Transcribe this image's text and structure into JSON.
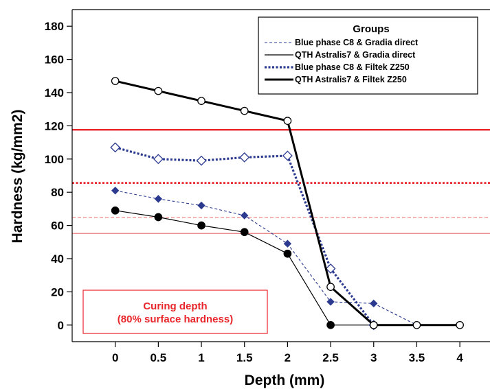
{
  "chart_data": {
    "type": "line",
    "xlabel": "Depth (mm)",
    "ylabel": "Hardness (kg/mm2)",
    "x": [
      0,
      0.5,
      1,
      1.5,
      2,
      2.5,
      3,
      3.5,
      4
    ],
    "x_tick_labels": [
      "0",
      "0.5",
      "1",
      "1.5",
      "2",
      "2.5",
      "3",
      "3.5",
      "4"
    ],
    "y_ticks": [
      0,
      20,
      40,
      60,
      80,
      100,
      120,
      140,
      160,
      180
    ],
    "xlim": [
      -0.5,
      4.35
    ],
    "ylim": [
      -10,
      190
    ],
    "grid": false,
    "legend": {
      "title": "Groups",
      "position": "top-right",
      "entries": [
        "Blue phase C8 & Gradia direct",
        "QTH Astralis7 & Gradia direct",
        "Blue phase C8 & Filtek Z250",
        "QTH Astralis7 & Filtek Z250"
      ]
    },
    "series": [
      {
        "name": "Blue phase C8 & Gradia direct",
        "color": "#2b3a8f",
        "line": "thin-dashed",
        "marker": "filled-diamond",
        "x": [
          0,
          0.5,
          1,
          1.5,
          2,
          2.5,
          3,
          3.5,
          4
        ],
        "values": [
          81,
          76,
          72,
          66,
          49,
          14,
          13,
          0,
          0
        ]
      },
      {
        "name": "QTH Astralis7 & Gradia direct",
        "color": "#000000",
        "line": "thin-solid",
        "marker": "filled-circle",
        "x": [
          0,
          0.5,
          1,
          1.5,
          2,
          2.5,
          3
        ],
        "values": [
          69,
          65,
          60,
          56,
          43,
          0,
          0
        ]
      },
      {
        "name": "Blue phase C8 & Filtek Z250",
        "color": "#2b3a8f",
        "line": "thick-dotted",
        "marker": "open-diamond",
        "x": [
          0,
          0.5,
          1,
          1.5,
          2,
          2.5,
          3
        ],
        "values": [
          107,
          100,
          99,
          101,
          102,
          34,
          0
        ]
      },
      {
        "name": "QTH Astralis7 & Filtek Z250",
        "color": "#000000",
        "line": "thick-solid",
        "marker": "open-circle",
        "x": [
          0,
          0.5,
          1,
          1.5,
          2,
          2.5,
          3,
          3.5,
          4
        ],
        "values": [
          147,
          141,
          135,
          129,
          123,
          23,
          0,
          0,
          0
        ]
      }
    ],
    "reference_lines": [
      {
        "y": 117.6,
        "color": "#e8262b",
        "style": "thick-solid"
      },
      {
        "y": 85.6,
        "color": "#e8262b",
        "style": "thick-dotted"
      },
      {
        "y": 64.8,
        "color": "#ef7b7b",
        "style": "thin-dashed"
      },
      {
        "y": 55.2,
        "color": "#ef7b7b",
        "style": "thin-solid"
      }
    ],
    "annotation": {
      "line1": "Curing depth",
      "line2": "(80% surface hardness)",
      "color": "#e8262b",
      "position": "bottom-left"
    }
  }
}
